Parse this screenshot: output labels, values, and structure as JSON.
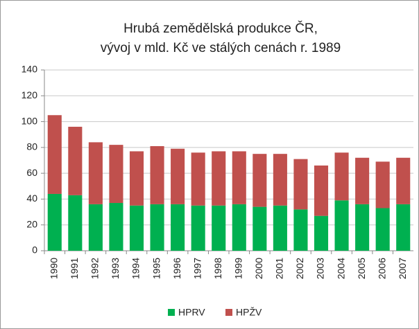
{
  "chart_data": {
    "type": "stacked_bar",
    "title": [
      "Hrubá zemědělská produkce  ČR,",
      "vývoj v mld. Kč ve stálých cenách r. 1989"
    ],
    "categories": [
      "1990",
      "1991",
      "1992",
      "1993",
      "1994",
      "1995",
      "1996",
      "1997",
      "1998",
      "1999",
      "2000",
      "2001",
      "2002",
      "2003",
      "2004",
      "2005",
      "2006",
      "2007"
    ],
    "series": [
      {
        "name": "HPRV",
        "color": "#00b050",
        "values": [
          44,
          43,
          36,
          37,
          35,
          36,
          36,
          35,
          35,
          36,
          34,
          35,
          32,
          27,
          39,
          36,
          33,
          36
        ]
      },
      {
        "name": "HPŽV",
        "color": "#c0504d",
        "values": [
          61,
          53,
          48,
          45,
          42,
          45,
          43,
          41,
          42,
          41,
          41,
          40,
          39,
          39,
          37,
          36,
          36,
          36
        ]
      }
    ],
    "ylim": [
      0,
      140
    ],
    "yticks": [
      0,
      20,
      40,
      60,
      80,
      100,
      120,
      140
    ],
    "grid": true,
    "legend": "bottom"
  }
}
